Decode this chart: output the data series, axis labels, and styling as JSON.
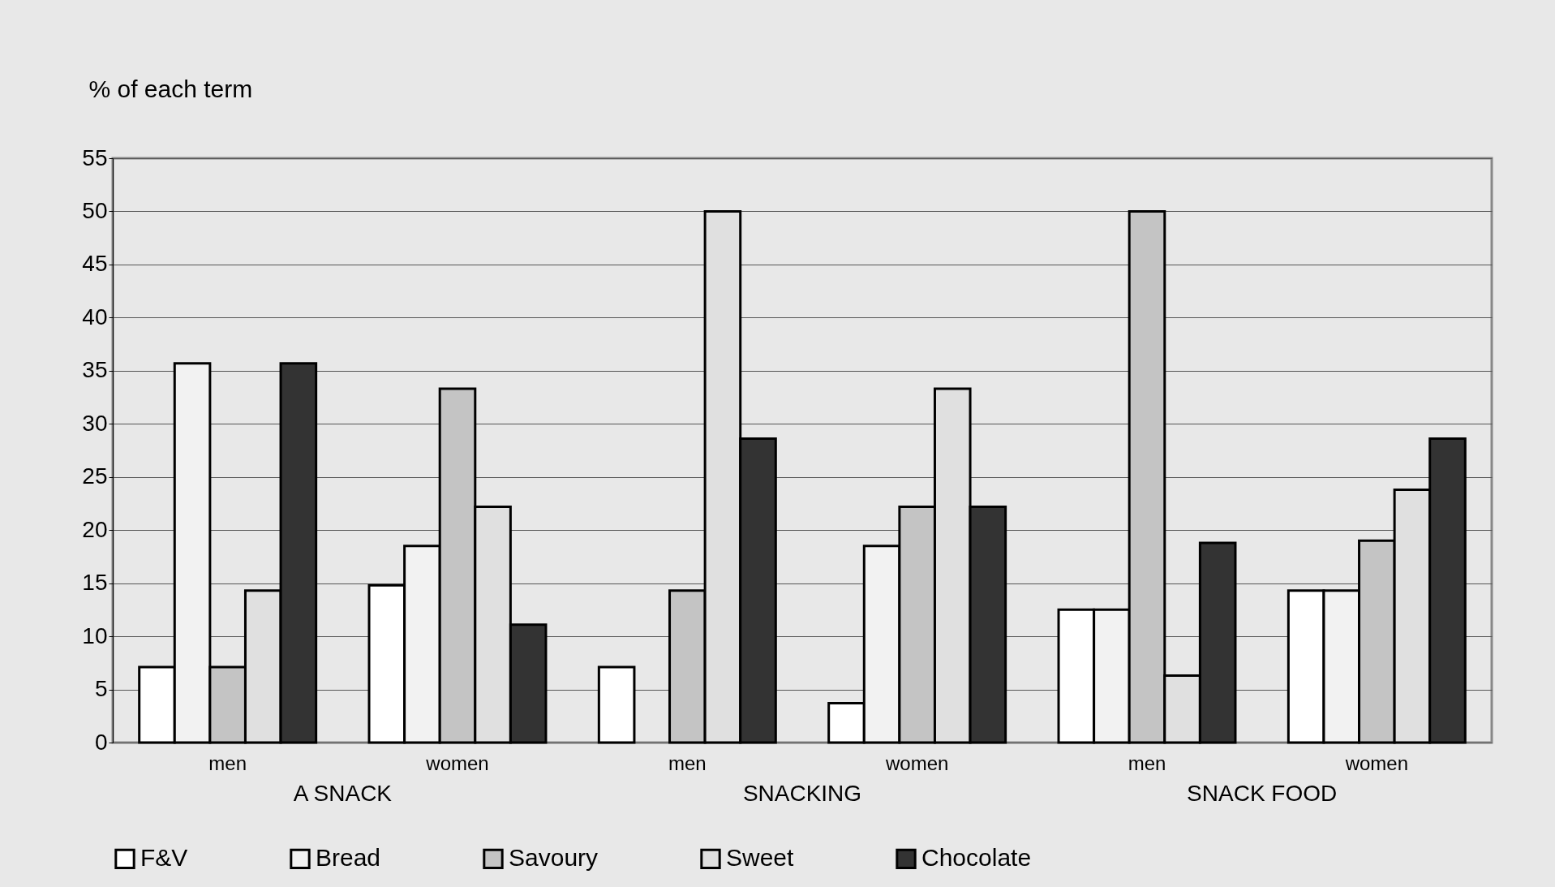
{
  "chart_data": {
    "type": "bar",
    "ylabel": "% of each term",
    "categories": [
      "men",
      "women",
      "men",
      "women",
      "men",
      "women"
    ],
    "annotations": [
      "A SNACK",
      "SNACKING",
      "SNACK FOOD"
    ],
    "series": [
      {
        "name": "F&V",
        "color": "#ffffff",
        "values": [
          7.1,
          14.8,
          7.1,
          3.7,
          12.5,
          14.3
        ]
      },
      {
        "name": "Bread",
        "color": "#f2f2f2",
        "values": [
          35.7,
          18.5,
          0,
          18.5,
          12.5,
          14.3
        ]
      },
      {
        "name": "Savoury",
        "color": "#c4c4c4",
        "values": [
          7.1,
          33.3,
          14.3,
          22.2,
          50,
          19
        ]
      },
      {
        "name": "Sweet",
        "color": "#e0e0e0",
        "values": [
          14.3,
          22.2,
          50,
          33.3,
          6.3,
          23.8
        ]
      },
      {
        "name": "Chocolate",
        "color": "#333333",
        "values": [
          35.7,
          11.1,
          28.6,
          22.2,
          18.8,
          28.6
        ]
      }
    ],
    "ylim": [
      0,
      55
    ],
    "yticks": [
      0,
      5,
      10,
      15,
      20,
      25,
      30,
      35,
      40,
      45,
      50,
      55
    ],
    "grid": "y",
    "legend": "bottom"
  }
}
